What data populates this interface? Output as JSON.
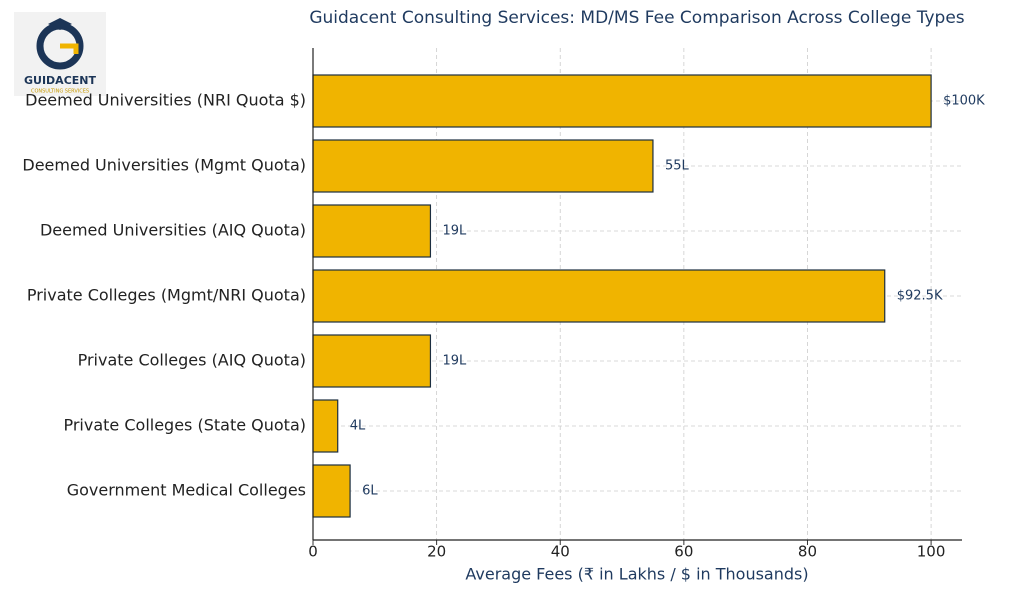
{
  "logo": {
    "name": "GUIDACENT",
    "tagline": "CONSULTING SERVICES"
  },
  "chart_data": {
    "type": "barh",
    "title": "Guidacent Consulting Services: MD/MS Fee Comparison Across College Types",
    "x_label": "Average Fees (₹ in Lakhs / $ in Thousands)",
    "categories": [
      "Deemed Universities (NRI Quota $)",
      "Deemed Universities (Mgmt Quota)",
      "Deemed Universities (AIQ Quota)",
      "Private Colleges (Mgmt/NRI Quota)",
      "Private Colleges (AIQ Quota)",
      "Private Colleges (State Quota)",
      "Government Medical Colleges"
    ],
    "values": [
      100,
      55,
      19,
      92.5,
      19,
      4,
      6
    ],
    "value_labels": [
      "$100K",
      "55L",
      "19L",
      "$92.5K",
      "19L",
      "4L",
      "6L"
    ],
    "color": "#f0b400",
    "xlim": [
      0,
      105
    ],
    "xticks": [
      0,
      20,
      40,
      60,
      80,
      100
    ],
    "grid": true
  }
}
